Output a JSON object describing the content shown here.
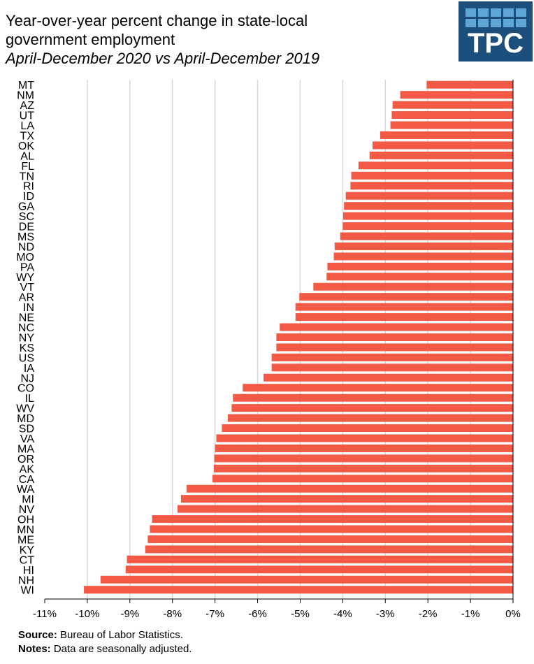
{
  "title": "Year-over-year  percent change in state-local",
  "title_line2": "government employment",
  "subtitle": "April-December 2020 vs April-December 2019",
  "logo_text": "TPC",
  "colors": {
    "bar": "#f25a46",
    "grid": "#d9d9d9",
    "axis": "#000000",
    "logo_bg": "#1d4f7c",
    "logo_tile": "#5fa6d6"
  },
  "footer": {
    "source_label": "Source:",
    "source_text": "Bureau of Labor Statistics.",
    "notes_label": "Notes:",
    "notes_text": "Data are seasonally adjusted."
  },
  "chart_data": {
    "type": "bar",
    "orientation": "horizontal",
    "categories": [
      "MT",
      "NM",
      "AZ",
      "UT",
      "LA",
      "TX",
      "OK",
      "AL",
      "FL",
      "TN",
      "RI",
      "ID",
      "GA",
      "SC",
      "DE",
      "MS",
      "ND",
      "MO",
      "PA",
      "WY",
      "VT",
      "AR",
      "IN",
      "NE",
      "NC",
      "NY",
      "KS",
      "US",
      "IA",
      "NJ",
      "CO",
      "IL",
      "WV",
      "MD",
      "SD",
      "VA",
      "MA",
      "OR",
      "AK",
      "CA",
      "WA",
      "MI",
      "NV",
      "OH",
      "MN",
      "ME",
      "KY",
      "CT",
      "HI",
      "NH",
      "WI"
    ],
    "values": [
      -2.03,
      -2.65,
      -2.83,
      -2.85,
      -2.88,
      -3.12,
      -3.3,
      -3.37,
      -3.63,
      -3.8,
      -3.82,
      -3.93,
      -3.97,
      -3.99,
      -4.0,
      -4.06,
      -4.19,
      -4.21,
      -4.36,
      -4.38,
      -4.69,
      -5.02,
      -5.11,
      -5.11,
      -5.48,
      -5.56,
      -5.56,
      -5.67,
      -5.67,
      -5.86,
      -6.35,
      -6.58,
      -6.61,
      -6.7,
      -6.84,
      -6.97,
      -7.0,
      -7.02,
      -7.03,
      -7.06,
      -7.67,
      -7.8,
      -7.88,
      -8.48,
      -8.53,
      -8.58,
      -8.64,
      -9.07,
      -9.1,
      -9.69,
      -10.08
    ],
    "xticks": [
      -11,
      -10,
      -9,
      -8,
      -7,
      -6,
      -5,
      -4,
      -3,
      -2,
      -1,
      0
    ],
    "xtick_labels": [
      "-11%",
      "-10%",
      "-9%",
      "-8%",
      "-7%",
      "-6%",
      "-5%",
      "-4%",
      "-3%",
      "-2%",
      "-1%",
      "0%"
    ],
    "xlim": [
      -11,
      0
    ],
    "grid": "vertical"
  }
}
